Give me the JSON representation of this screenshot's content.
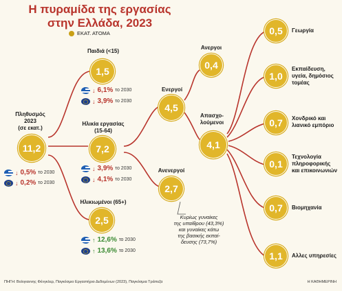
{
  "title_line1": "Η πυραμίδα της εργασίας",
  "title_line2": "στην Ελλάδα, 2023",
  "legend_label": "ΕΚΑΤ. ΑΤΟΜΑ",
  "population": {
    "label1": "Πληθυσμός",
    "label2": "2023",
    "label3": "(σε εκατ.)",
    "value": "11,2",
    "gr_change": "0,5%",
    "eu_change": "0,2%",
    "year_suffix": "το 2030"
  },
  "children": {
    "label": "Παιδιά (<15)",
    "value": "1,5",
    "gr_change": "6,1%",
    "eu_change": "3,9%",
    "year_suffix": "το 2030"
  },
  "working_age": {
    "label1": "Ηλικία εργασίας",
    "label2": "(15-64)",
    "value": "7,2",
    "gr_change": "3,9%",
    "eu_change": "4,1%",
    "year_suffix": "το 2030"
  },
  "elderly": {
    "label": "Ηλικιωμένοι (65+)",
    "value": "2,5",
    "gr_change": "12,6%",
    "eu_change": "13,6%",
    "year_suffix": "το 2030"
  },
  "active": {
    "label": "Ενεργοί",
    "value": "4,5"
  },
  "inactive": {
    "label": "Ανενεργοί",
    "value": "2,7"
  },
  "unemployed": {
    "label": "Ανεργοι",
    "value": "0,4"
  },
  "employed": {
    "label1": "Απασχο-",
    "label2": "λούμενοι",
    "value": "4,1"
  },
  "sectors": [
    {
      "value": "0,5",
      "lines": [
        "Γεωργία"
      ]
    },
    {
      "value": "1,0",
      "lines": [
        "Εκπαίδευση,",
        "υγεία, δημόσιος",
        "τομέας"
      ]
    },
    {
      "value": "0,7",
      "lines": [
        "Χονδρικό και",
        "λιανικό εμπόριο"
      ]
    },
    {
      "value": "0,1",
      "lines": [
        "Τεχνολογία",
        "πληροφορικής",
        "και επικοινωνιών"
      ]
    },
    {
      "value": "0,7",
      "lines": [
        "Βιομηχανία"
      ]
    },
    {
      "value": "1,1",
      "lines": [
        "Αλλες υπηρεσίες"
      ]
    }
  ],
  "note_lines": [
    "Κυρίως γυναίκες",
    "της υπαίθρου (43,3%)",
    "και γυναίκες κάτω",
    "της βασικής εκπαί-",
    "δευσης (73,7%)"
  ],
  "footer": "ΠΗΓΗ: Βολιγιαννης Φένγκλερ, Παγκόσμιο Εργαστήριο Δεδομένων (2023), Παγκόσμια Τράπεζα",
  "brand": "Η ΚΑΘΗΜΕΡΙΝΗ"
}
